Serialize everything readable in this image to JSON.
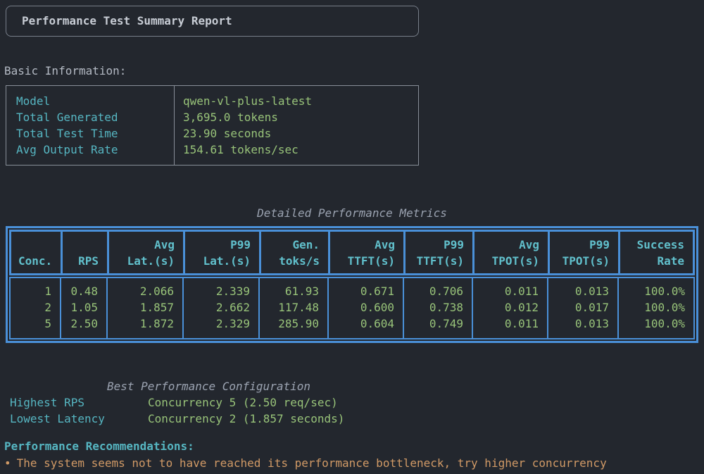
{
  "title_box": {
    "title": "Performance Test Summary Report"
  },
  "basic_info": {
    "heading": "Basic Information:",
    "rows": [
      {
        "label": "Model",
        "value": "qwen-vl-plus-latest"
      },
      {
        "label": "Total Generated",
        "value": "3,695.0 tokens"
      },
      {
        "label": "Total Test Time",
        "value": "23.90 seconds"
      },
      {
        "label": "Avg Output Rate",
        "value": "154.61 tokens/sec"
      }
    ]
  },
  "metrics_table": {
    "title": "Detailed Performance Metrics",
    "columns": [
      {
        "l1": "",
        "l2": "Conc."
      },
      {
        "l1": "",
        "l2": "RPS"
      },
      {
        "l1": "Avg",
        "l2": "Lat.(s)"
      },
      {
        "l1": "P99",
        "l2": "Lat.(s)"
      },
      {
        "l1": "Gen.",
        "l2": "toks/s"
      },
      {
        "l1": "Avg",
        "l2": "TTFT(s)"
      },
      {
        "l1": "P99",
        "l2": "TTFT(s)"
      },
      {
        "l1": "Avg",
        "l2": "TPOT(s)"
      },
      {
        "l1": "P99",
        "l2": "TPOT(s)"
      },
      {
        "l1": "Success",
        "l2": "Rate"
      }
    ],
    "rows": [
      [
        "1",
        "0.48",
        "2.066",
        "2.339",
        "61.93",
        "0.671",
        "0.706",
        "0.011",
        "0.013",
        "100.0%"
      ],
      [
        "2",
        "1.05",
        "1.857",
        "2.662",
        "117.48",
        "0.600",
        "0.738",
        "0.012",
        "0.017",
        "100.0%"
      ],
      [
        "5",
        "2.50",
        "1.872",
        "2.329",
        "285.90",
        "0.604",
        "0.749",
        "0.011",
        "0.013",
        "100.0%"
      ]
    ]
  },
  "best_config": {
    "title": "Best Performance Configuration",
    "rows": [
      {
        "label": "Highest RPS",
        "value": "Concurrency 5 (2.50 req/sec)"
      },
      {
        "label": "Lowest Latency",
        "value": "Concurrency 2 (1.857 seconds)"
      }
    ]
  },
  "recommendations": {
    "heading": "Performance Recommendations:",
    "items": [
      {
        "bullet": "•",
        "text": "The system seems not to have reached its performance bottleneck, try higher concurrency"
      }
    ]
  },
  "colors": {
    "background": "#23272e",
    "cyan": "#56b6c2",
    "green": "#98c379",
    "table_border_blue": "#4a90d8",
    "orange": "#d19a66",
    "gray": "#abb2bf"
  }
}
